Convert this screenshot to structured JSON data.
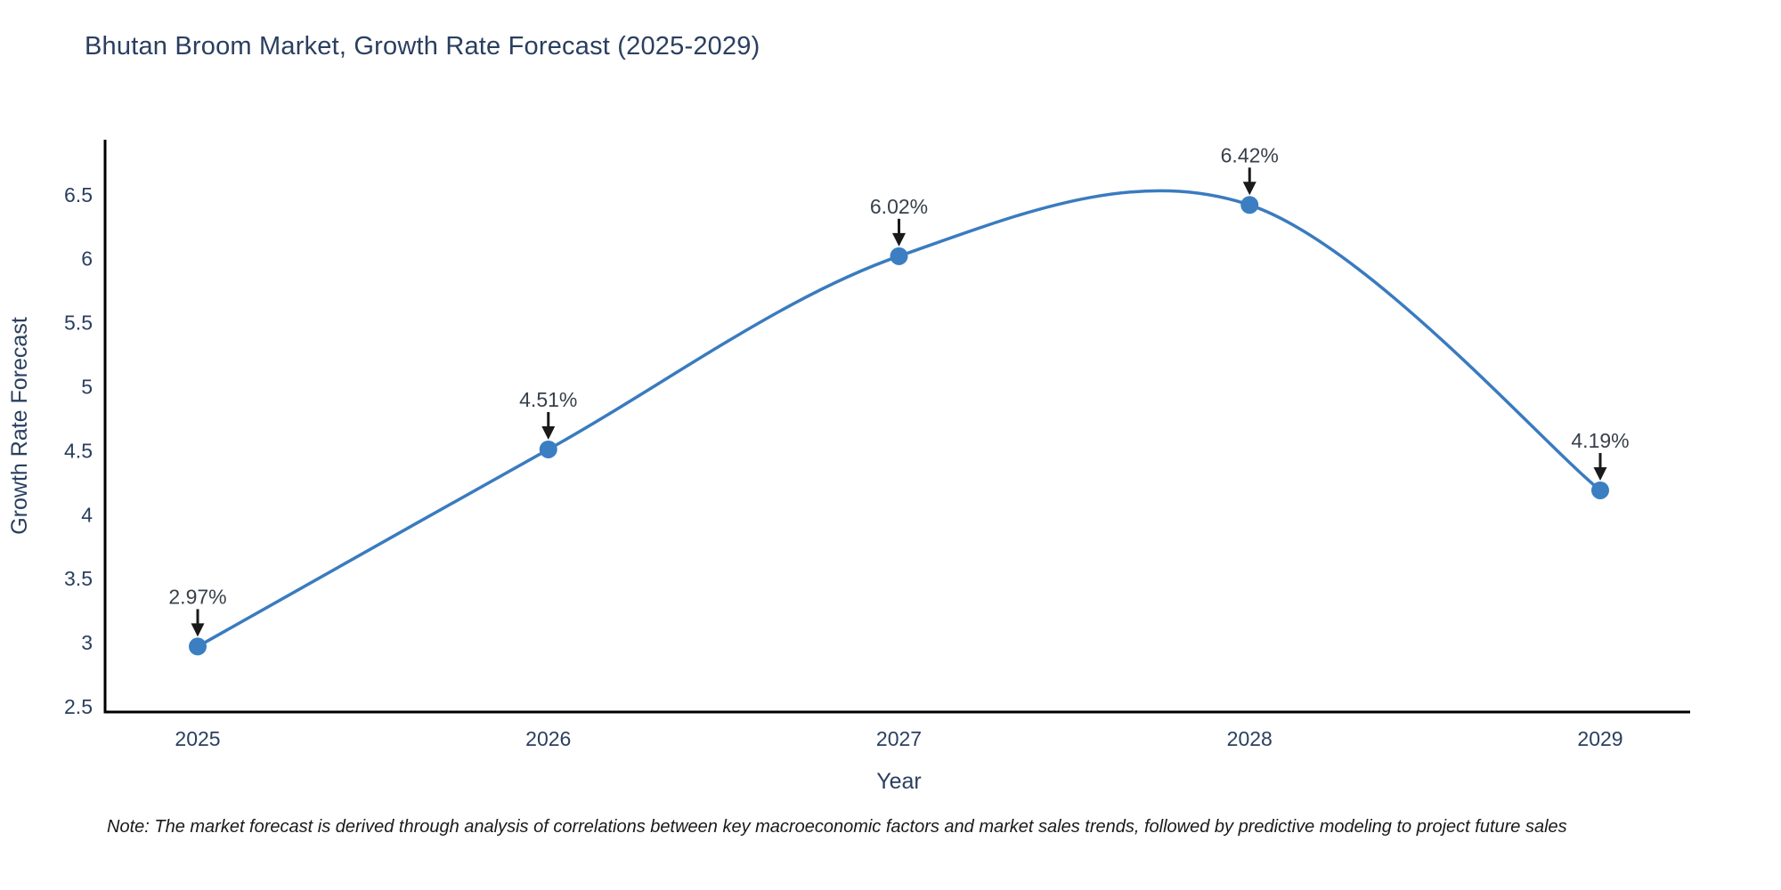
{
  "title": "Bhutan Broom Market, Growth Rate Forecast (2025-2029)",
  "note": "Note: The market forecast is derived through analysis of correlations between key macroeconomic factors and market sales trends, followed by predictive modeling to project future sales",
  "chart_data": {
    "type": "line",
    "title": "Bhutan Broom Market, Growth Rate Forecast (2025-2029)",
    "xlabel": "Year",
    "ylabel": "Growth Rate Forecast",
    "x": [
      2025,
      2026,
      2027,
      2028,
      2029
    ],
    "values": [
      2.97,
      4.51,
      6.02,
      6.42,
      4.19
    ],
    "point_labels": [
      "2.97%",
      "4.51%",
      "6.02%",
      "6.42%",
      "4.19%"
    ],
    "x_tick_labels": [
      "2025",
      "2026",
      "2027",
      "2028",
      "2029"
    ],
    "y_ticks": [
      2.5,
      3,
      3.5,
      4,
      4.5,
      5,
      5.5,
      6,
      6.5
    ],
    "y_tick_labels": [
      "2.5",
      "3",
      "3.5",
      "4",
      "4.5",
      "5",
      "5.5",
      "6",
      "6.5"
    ],
    "ylim": [
      2.46,
      6.95
    ],
    "line_shape": "spline",
    "markers_on": true,
    "grid": false,
    "legend_position": "none",
    "colors": {
      "line": "#3a7bbf",
      "marker": "#3b7ec2",
      "axis_line": "#000000",
      "tick_text": "#2a3f5f",
      "annotation_text": "#38404a",
      "arrow": "#1a1a1a",
      "background": "#ffffff"
    }
  }
}
